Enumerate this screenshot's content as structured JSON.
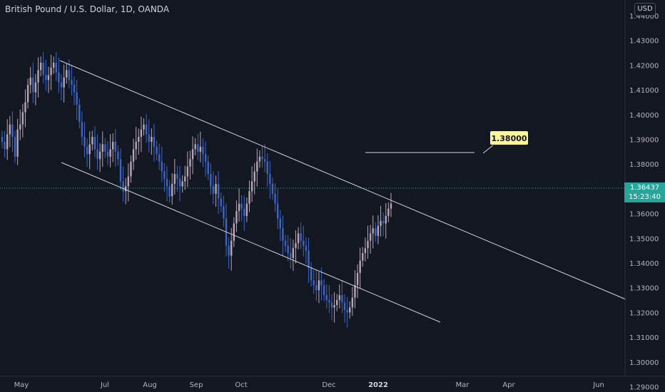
{
  "header": {
    "title": "British Pound / U.S. Dollar, 1D, OANDA",
    "currency_button": "USD"
  },
  "price_tag": {
    "price": "1.36437",
    "countdown": "15:23:40",
    "color": "#26a69a"
  },
  "annotation": {
    "target_label": "1.38000",
    "target_value": 1.38
  },
  "colors": {
    "background": "#131722",
    "bull_candle": "#b8a6b4",
    "bear_candle": "#3d65c4",
    "trendline": "#d1d4dc",
    "label_bg": "#fff59d"
  },
  "chart_data": {
    "type": "candlestick",
    "title": "British Pound / U.S. Dollar, 1D, OANDA",
    "x_tick_labels": [
      "May",
      "Jul",
      "Aug",
      "Sep",
      "Oct",
      "Dec",
      "2022",
      "Mar",
      "Apr",
      "Jun"
    ],
    "y_tick_labels": [
      "1.44000",
      "1.43000",
      "1.42000",
      "1.41000",
      "1.40000",
      "1.39000",
      "1.38000",
      "1.37000",
      "1.36000",
      "1.35000",
      "1.34000",
      "1.33000",
      "1.32000",
      "1.31000",
      "1.30000",
      "1.29000"
    ],
    "y_range": [
      1.285,
      1.445
    ],
    "last_price": 1.36437,
    "closes_approx": [
      1.389,
      1.386,
      1.392,
      1.396,
      1.391,
      1.383,
      1.394,
      1.396,
      1.401,
      1.405,
      1.412,
      1.415,
      1.409,
      1.413,
      1.418,
      1.421,
      1.416,
      1.414,
      1.416,
      1.419,
      1.421,
      1.417,
      1.413,
      1.411,
      1.415,
      1.418,
      1.414,
      1.412,
      1.409,
      1.404,
      1.397,
      1.391,
      1.387,
      1.384,
      1.388,
      1.391,
      1.386,
      1.382,
      1.385,
      1.388,
      1.385,
      1.383,
      1.386,
      1.389,
      1.385,
      1.382,
      1.373,
      1.369,
      1.371,
      1.375,
      1.381,
      1.386,
      1.389,
      1.391,
      1.394,
      1.396,
      1.392,
      1.389,
      1.391,
      1.387,
      1.384,
      1.381,
      1.377,
      1.374,
      1.371,
      1.367,
      1.372,
      1.376,
      1.374,
      1.371,
      1.373,
      1.375,
      1.379,
      1.382,
      1.386,
      1.388,
      1.385,
      1.387,
      1.384,
      1.381,
      1.376,
      1.371,
      1.368,
      1.372,
      1.366,
      1.363,
      1.358,
      1.347,
      1.343,
      1.349,
      1.356,
      1.361,
      1.364,
      1.362,
      1.359,
      1.364,
      1.369,
      1.373,
      1.377,
      1.381,
      1.383,
      1.382,
      1.381,
      1.376,
      1.372,
      1.368,
      1.364,
      1.358,
      1.354,
      1.349,
      1.347,
      1.344,
      1.342,
      1.346,
      1.348,
      1.352,
      1.349,
      1.347,
      1.345,
      1.338,
      1.333,
      1.331,
      1.329,
      1.333,
      1.331,
      1.327,
      1.325,
      1.324,
      1.322,
      1.323,
      1.325,
      1.327,
      1.324,
      1.321,
      1.32,
      1.322,
      1.326,
      1.331,
      1.336,
      1.341,
      1.344,
      1.346,
      1.349,
      1.352,
      1.354,
      1.351,
      1.355,
      1.357,
      1.356,
      1.359,
      1.362,
      1.364
    ],
    "trendlines": [
      {
        "name": "channel-upper",
        "from_price": 1.4225,
        "to_price": 1.3135
      },
      {
        "name": "channel-lower",
        "from_price": 1.3785,
        "to_price": 1.305
      },
      {
        "name": "target-line",
        "price": 1.38
      }
    ]
  }
}
